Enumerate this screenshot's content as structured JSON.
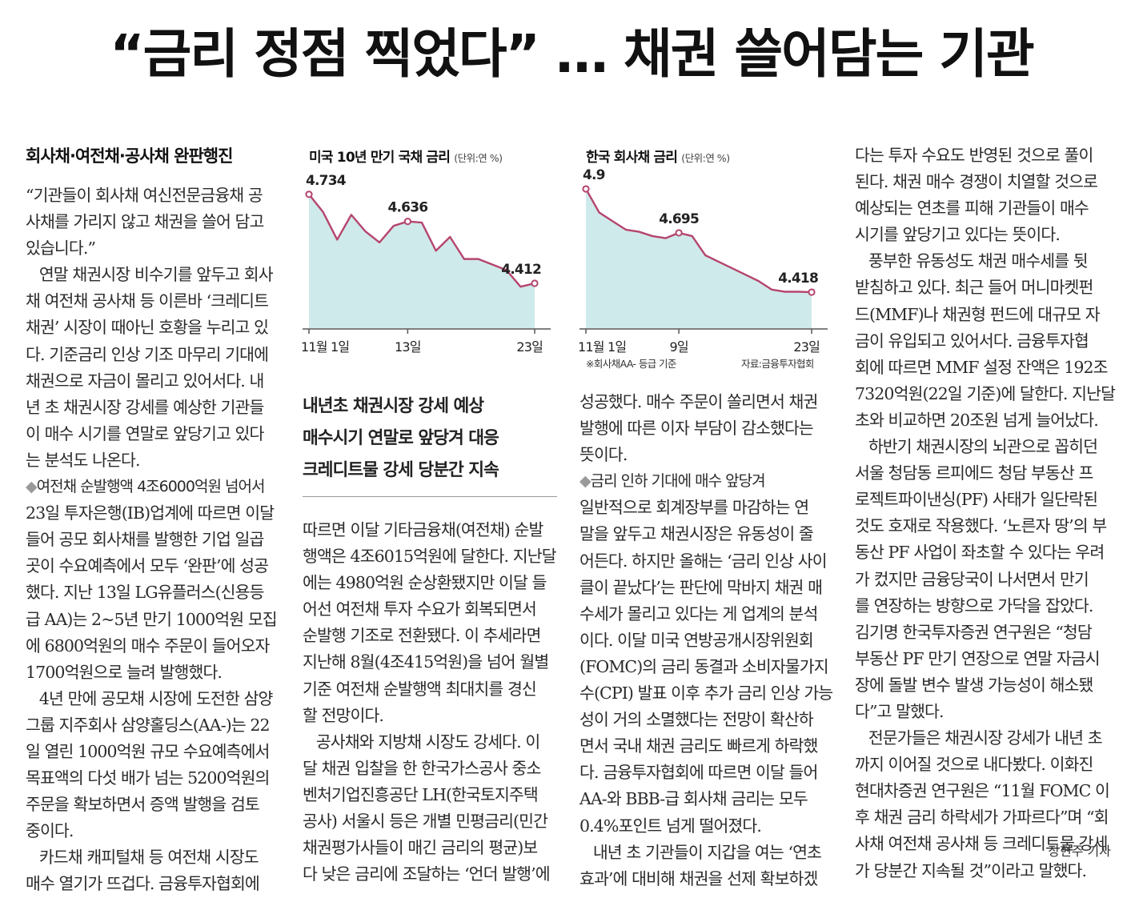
{
  "headline": "“금리 정점 찍었다” … 채권 쓸어담는 기관",
  "col1": {
    "subhead": "회사채·여전채·공사채 완판행진",
    "lines": [
      "“기관들이 회사채 여신전문금융채 공",
      "사채를 가리지 않고 채권을 쓸어 담고",
      "있습니다.”",
      "   연말 채권시장 비수기를 앞두고 회사",
      "채 여전채 공사채 등 이른바 ‘크레디트",
      "채권’ 시장이 때아닌 호황을 누리고 있",
      "다. 기준금리 인상 기조 마무리 기대에",
      "채권으로 자금이 몰리고 있어서다. 내",
      "년 초 채권시장 강세를 예상한 기관들",
      "이 매수 시기를 연말로 앞당기고 있다",
      "는 분석도 나온다."
    ],
    "bullet": "여전채 순발행액 4조6000억원 넘어서",
    "lines2": [
      "23일 투자은행(IB)업계에 따르면 이달",
      "들어 공모 회사채를 발행한 기업 일곱",
      "곳이 수요예측에서 모두 ‘완판’에 성공",
      "했다. 지난 13일 LG유플러스(신용등",
      "급 AA)는 2~5년 만기 1000억원 모집",
      "에 6800억원의 매수 주문이 들어오자",
      "1700억원으로 늘려 발행했다.",
      "   4년 만에 공모채 시장에 도전한 삼양",
      "그룹 지주회사 삼양홀딩스(AA-)는 22",
      "일 열린 1000억원 규모 수요예측에서",
      "목표액의 다섯 배가 넘는 5200억원의",
      "주문을 확보하면서 증액 발행을 검토",
      "중이다.",
      "   카드채 캐피털채 등 여전채 시장도",
      "매수 열기가 뜨겁다. 금융투자협회에"
    ]
  },
  "chart1": {
    "title": "미국 10년 만기 국채 금리",
    "unit": "(단위:연 %)",
    "labels": {
      "first": "4.734",
      "mid": "4.636",
      "last": "4.412"
    },
    "xticks": [
      "11월 1일",
      "13일",
      "23일"
    ]
  },
  "chart2": {
    "title": "한국 회사채 금리",
    "unit": "(단위:연 %)",
    "labels": {
      "first": "4.9",
      "mid": "4.695",
      "last": "4.418"
    },
    "xticks": [
      "11월 1일",
      "9일",
      "23일"
    ],
    "footnote": "※회사채AA- 등급 기준",
    "source": "자료:금융투자협회"
  },
  "chart_data": [
    {
      "type": "area",
      "title": "미국 10년 만기 국채 금리",
      "unit": "(단위:연 %)",
      "x_tick_labels": [
        "11월 1일",
        "13일",
        "23일"
      ],
      "values": [
        4.734,
        4.67,
        4.57,
        4.66,
        4.6,
        4.56,
        4.62,
        4.636,
        4.632,
        4.53,
        4.58,
        4.5,
        4.5,
        4.48,
        4.46,
        4.4,
        4.412
      ],
      "annotated": [
        4.734,
        4.636,
        4.412
      ],
      "color": "#b5456f",
      "fill": "#cfeaea"
    },
    {
      "type": "area",
      "title": "한국 회사채 금리",
      "unit": "(단위:연 %)",
      "x_tick_labels": [
        "11월 1일",
        "9일",
        "23일"
      ],
      "values": [
        4.9,
        4.79,
        4.75,
        4.71,
        4.7,
        4.68,
        4.67,
        4.695,
        4.68,
        4.59,
        4.56,
        4.53,
        4.5,
        4.47,
        4.43,
        4.42,
        4.42,
        4.418
      ],
      "annotated": [
        4.9,
        4.695,
        4.418
      ],
      "color": "#b5456f",
      "fill": "#cfeaea"
    }
  ],
  "deck": [
    "내년초 채권시장 강세 예상",
    "매수시기 연말로 앞당겨 대응",
    "크레디트물 강세 당분간 지속"
  ],
  "col2": {
    "lines": [
      "따르면 이달 기타금융채(여전채) 순발",
      "행액은 4조6015억원에 달한다. 지난달",
      "에는 4980억원 순상환됐지만 이달 들",
      "어선 여전채 투자 수요가 회복되면서",
      "순발행 기조로 전환됐다. 이 추세라면",
      "지난해 8월(4조415억원)을 넘어 월별",
      "기준 여전채 순발행액 최대치를 경신",
      "할 전망이다.",
      "   공사채와 지방채 시장도 강세다. 이",
      "달 채권 입찰을 한 한국가스공사 중소",
      "벤처기업진흥공단 LH(한국토지주택",
      "공사) 서울시 등은 개별 민평금리(민간",
      "채권평가사들이 매긴 금리의 평균)보",
      "다 낮은 금리에 조달하는 ‘언더 발행’에"
    ]
  },
  "col3": {
    "lines": [
      "성공했다. 매수 주문이 쏠리면서 채권",
      "발행에 따른 이자 부담이 감소했다는",
      "뜻이다."
    ],
    "bullet": "금리 인하 기대에 매수 앞당겨",
    "lines2": [
      "일반적으로 회계장부를 마감하는 연",
      "말을 앞두고 채권시장은 유동성이 줄",
      "어든다. 하지만 올해는 ‘금리 인상 사이",
      "클이 끝났다’는 판단에 막바지 채권 매",
      "수세가 몰리고 있다는 게 업계의 분석",
      "이다. 이달 미국 연방공개시장위원회",
      "(FOMC)의 금리 동결과 소비자물가지",
      "수(CPI) 발표 이후 추가 금리 인상 가능",
      "성이 거의 소멸했다는 전망이 확산하",
      "면서 국내 채권 금리도 빠르게 하락했",
      "다. 금융투자협회에 따르면 이달 들어",
      "AA-와 BBB-급 회사채 금리는 모두",
      "0.4%포인트 넘게 떨어졌다.",
      "   내년 초 기관들이 지갑을 여는 ‘연초",
      "효과’에 대비해 채권을 선제 확보하겠"
    ]
  },
  "col4": {
    "lines": [
      "다는 투자 수요도 반영된 것으로 풀이",
      "된다. 채권 매수 경쟁이 치열할 것으로",
      "예상되는 연초를 피해 기관들이 매수",
      "시기를 앞당기고 있다는 뜻이다.",
      "   풍부한 유동성도 채권 매수세를 뒷",
      "받침하고 있다. 최근 들어 머니마켓펀",
      "드(MMF)나 채권형 펀드에 대규모 자",
      "금이 유입되고 있어서다. 금융투자협",
      "회에 따르면 MMF 설정 잔액은 192조",
      "7320억원(22일 기준)에 달한다. 지난달",
      "초와 비교하면 20조원 넘게 늘어났다.",
      "   하반기 채권시장의 뇌관으로 꼽히던",
      "서울 청담동 르피에드 청담 부동산 프",
      "로젝트파이낸싱(PF) 사태가 일단락된",
      "것도 호재로 작용했다. ‘노른자 땅’의 부",
      "동산 PF 사업이 좌초할 수 있다는 우려",
      "가 컸지만 금융당국이 나서면서 만기",
      "를 연장하는 방향으로 가닥을 잡았다.",
      "김기명 한국투자증권 연구원은 “청담",
      "부동산 PF 만기 연장으로 연말 자금시",
      "장에 돌발 변수 발생 가능성이 해소됐",
      "다”고 말했다.",
      "   전문가들은 채권시장 강세가 내년 초",
      "까지 이어질 것으로 내다봤다. 이화진",
      "현대차증권 연구원은 “11월 FOMC 이",
      "후 채권 금리 하락세가 가파르다”며 “회",
      "사채 여전채 공사채 등 크레디트물 강세",
      "가 당분간 지속될 것”이라고 말했다."
    ],
    "byline": "장현주 기자"
  }
}
